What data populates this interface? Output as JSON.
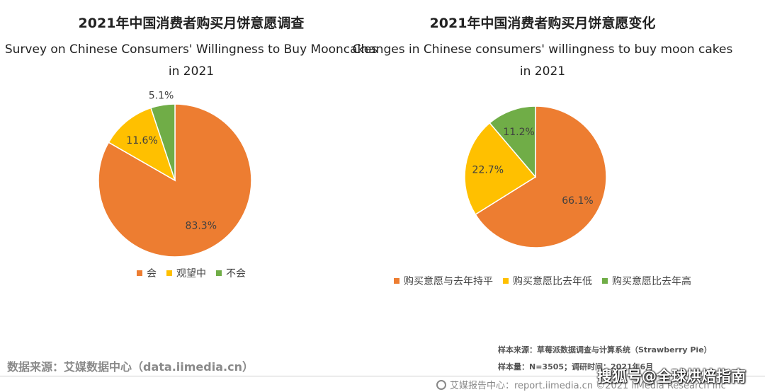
{
  "charts": {
    "left": {
      "title_cn": "2021年中国消费者购买月饼意愿调查",
      "title_en": "Survey on Chinese Consumers' Willingness to Buy Mooncakes in 2021"
    },
    "right": {
      "title_cn": "2021年中国消费者购买月饼意愿变化",
      "title_en": "Changes in Chinese consumers' willingness to buy moon cakes in 2021"
    }
  },
  "chart_data": [
    {
      "type": "pie",
      "title": "2021年中国消费者购买月饼意愿调查",
      "subtitle": "Survey on Chinese Consumers' Willingness to Buy Mooncakes in 2021",
      "labels": [
        "会",
        "观望中",
        "不会"
      ],
      "values": [
        83.3,
        11.6,
        5.1
      ],
      "value_labels": [
        "83.3%",
        "11.6%",
        "5.1%"
      ],
      "colors": [
        "#ED7D31",
        "#FFC000",
        "#70AD47"
      ],
      "legend_position": "bottom"
    },
    {
      "type": "pie",
      "title": "2021年中国消费者购买月饼意愿变化",
      "subtitle": "Changes in Chinese consumers' willingness to buy moon cakes in 2021",
      "labels": [
        "购买意愿与去年持平",
        "购买意愿比去年低",
        "购买意愿比去年高"
      ],
      "values": [
        66.1,
        22.7,
        11.2
      ],
      "value_labels": [
        "66.1%",
        "22.7%",
        "11.2%"
      ],
      "colors": [
        "#ED7D31",
        "#FFC000",
        "#70AD47"
      ],
      "legend_position": "bottom"
    }
  ],
  "footer": {
    "source_left": "数据来源：艾媒数据中心（data.iimedia.cn）",
    "sample_source": "样本来源：草莓派数据调查与计算系统（Strawberry Pie）",
    "sample_size": "样本量：N=3505；调研时间：2021年6月",
    "credit": "艾媒报告中心：report.iimedia.cn ©2021 iiMedia Research Inc",
    "credit_icon": "iimedia-logo-icon",
    "watermark": "搜狐号@全球烘焙指南"
  }
}
